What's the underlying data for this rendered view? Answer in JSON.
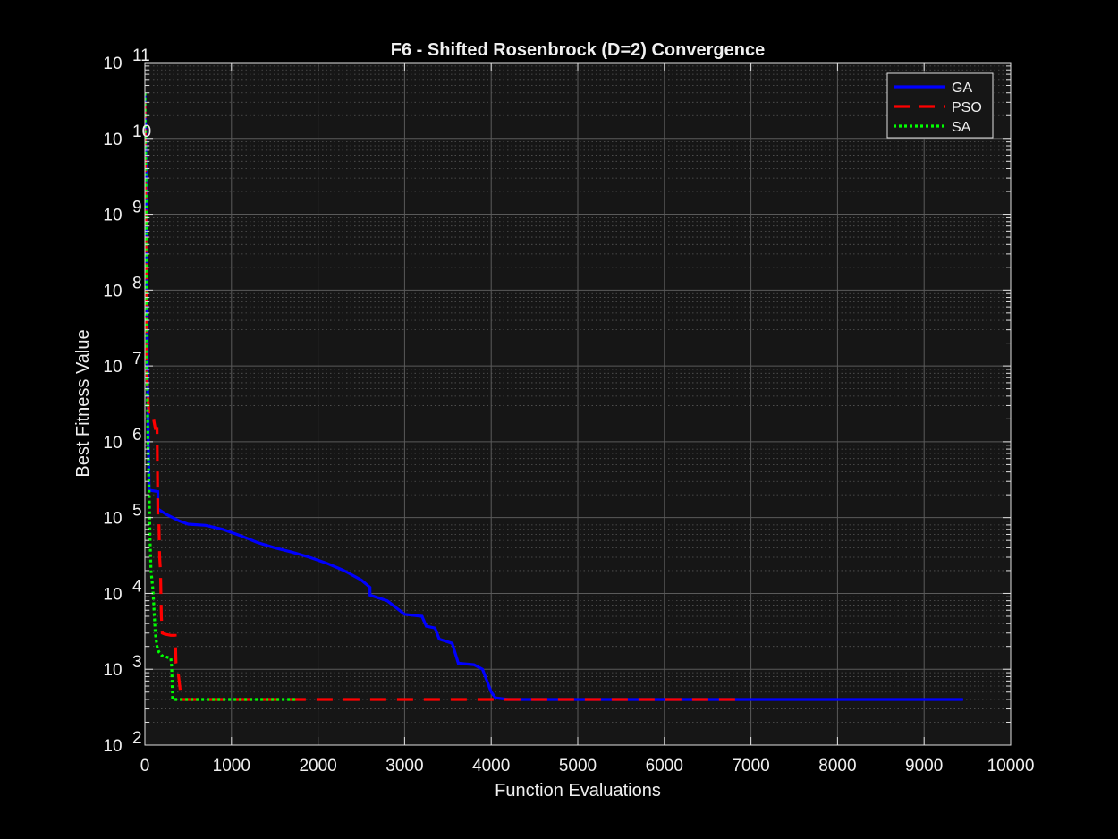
{
  "chart_data": {
    "type": "line",
    "title": "F6 - Shifted Rosenbrock (D=2) Convergence",
    "xlabel": "Function Evaluations",
    "ylabel": "Best Fitness Value",
    "xlim": [
      0,
      10000
    ],
    "ylim": [
      100,
      100000000000
    ],
    "yscale": "log",
    "grid": true,
    "minor_grid": true,
    "legend_position": "top-right",
    "x_ticks": [
      0,
      1000,
      2000,
      3000,
      4000,
      5000,
      6000,
      7000,
      8000,
      9000,
      10000
    ],
    "x_tick_labels": [
      "0",
      "1000",
      "2000",
      "3000",
      "4000",
      "5000",
      "6000",
      "7000",
      "8000",
      "9000",
      "10000"
    ],
    "y_tick_exponents": [
      2,
      3,
      4,
      5,
      6,
      7,
      8,
      9,
      10,
      11
    ],
    "y_tick_base": "10",
    "series": [
      {
        "name": "GA",
        "color": "#0000ff",
        "style": "solid",
        "points": [
          [
            0,
            40000000000
          ],
          [
            20,
            1500000000
          ],
          [
            30,
            10000000
          ],
          [
            40,
            1000000
          ],
          [
            50,
            230000
          ],
          [
            150,
            220000
          ],
          [
            150,
            130000
          ],
          [
            250,
            110000
          ],
          [
            400,
            90000
          ],
          [
            500,
            82000
          ],
          [
            700,
            79000
          ],
          [
            900,
            70000
          ],
          [
            1100,
            58000
          ],
          [
            1300,
            47000
          ],
          [
            1500,
            40000
          ],
          [
            1700,
            35000
          ],
          [
            1900,
            30000
          ],
          [
            2100,
            25000
          ],
          [
            2300,
            20000
          ],
          [
            2500,
            15000
          ],
          [
            2600,
            12000
          ],
          [
            2600,
            9500
          ],
          [
            2800,
            8000
          ],
          [
            2900,
            6500
          ],
          [
            3000,
            5300
          ],
          [
            3200,
            5000
          ],
          [
            3250,
            3700
          ],
          [
            3350,
            3500
          ],
          [
            3400,
            2500
          ],
          [
            3550,
            2200
          ],
          [
            3620,
            1200
          ],
          [
            3800,
            1150
          ],
          [
            3900,
            1000
          ],
          [
            4000,
            500
          ],
          [
            4050,
            420
          ],
          [
            4200,
            400
          ],
          [
            9450,
            400
          ]
        ]
      },
      {
        "name": "PSO",
        "color": "#ff0000",
        "style": "dashed",
        "points": [
          [
            0,
            30000000000
          ],
          [
            10,
            1000000000
          ],
          [
            20,
            10000000
          ],
          [
            40,
            3000000
          ],
          [
            50,
            2000000
          ],
          [
            100,
            2000000
          ],
          [
            120,
            1500000
          ],
          [
            140,
            1500000
          ],
          [
            150,
            110000
          ],
          [
            160,
            110000
          ],
          [
            170,
            30000
          ],
          [
            180,
            20000
          ],
          [
            190,
            5000
          ],
          [
            200,
            3000
          ],
          [
            230,
            2900
          ],
          [
            300,
            2800
          ],
          [
            350,
            2800
          ],
          [
            360,
            1200
          ],
          [
            380,
            1000
          ],
          [
            420,
            400
          ],
          [
            6900,
            400
          ]
        ]
      },
      {
        "name": "SA",
        "color": "#00ff00",
        "style": "dotted",
        "points": [
          [
            0,
            40000000000
          ],
          [
            15,
            1000000000
          ],
          [
            25,
            10000000
          ],
          [
            35,
            1000000
          ],
          [
            50,
            200000
          ],
          [
            60,
            50000
          ],
          [
            70,
            20000
          ],
          [
            90,
            12000
          ],
          [
            100,
            8000
          ],
          [
            110,
            5000
          ],
          [
            120,
            3000
          ],
          [
            140,
            2000
          ],
          [
            160,
            1700
          ],
          [
            200,
            1500
          ],
          [
            300,
            1400
          ],
          [
            310,
            1050
          ],
          [
            320,
            400
          ],
          [
            1750,
            400
          ]
        ]
      }
    ]
  }
}
